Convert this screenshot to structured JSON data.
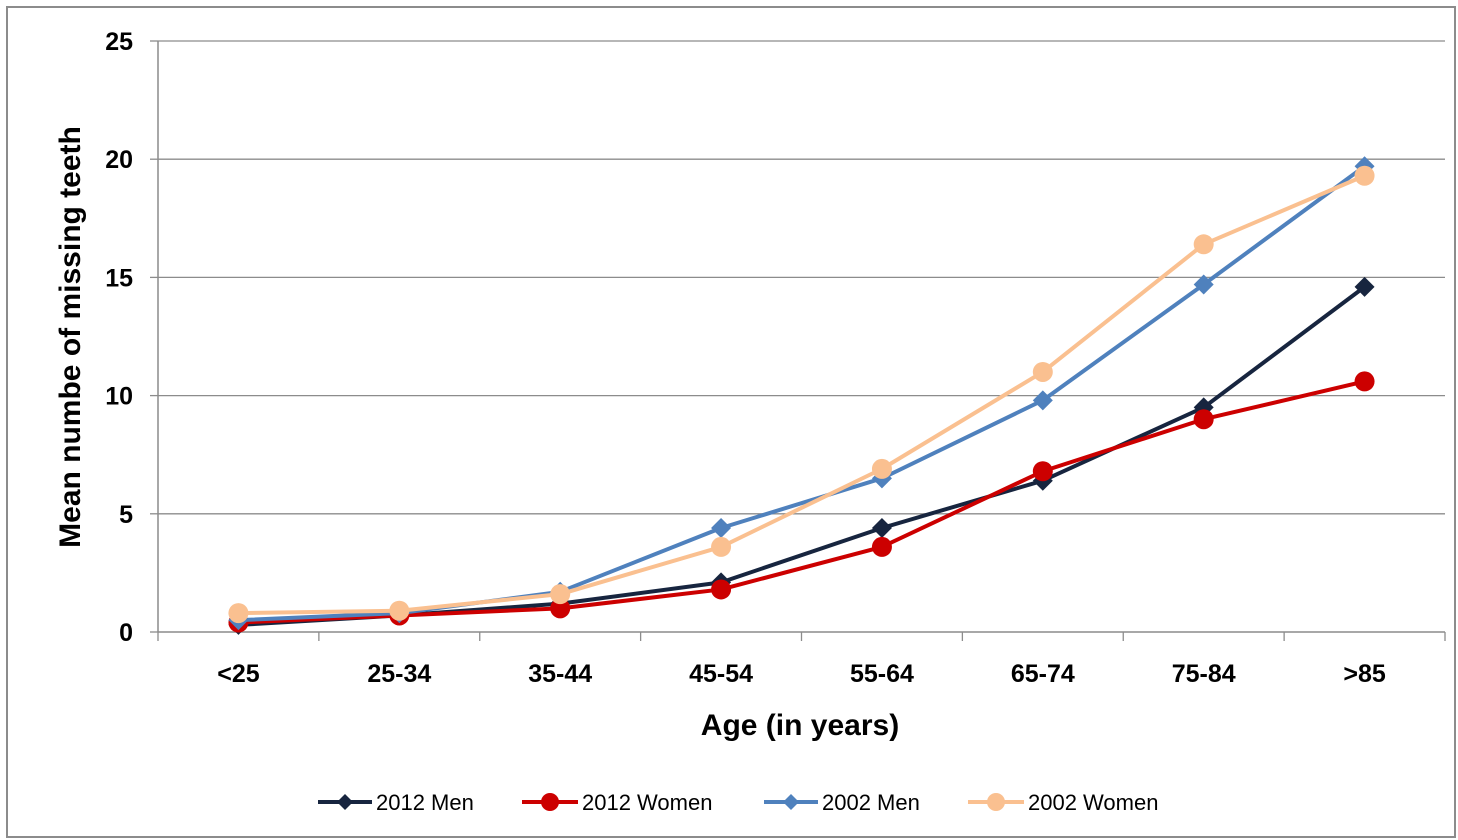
{
  "chart_data": {
    "type": "line",
    "title": "",
    "xlabel": "Age (in years)",
    "ylabel": "Mean numbe of missing teeth",
    "ylim": [
      0,
      25
    ],
    "yticks": [
      "0",
      "5",
      "10",
      "15",
      "20",
      "25"
    ],
    "categories": [
      "<25",
      "25-34",
      "35-44",
      "45-54",
      "55-64",
      "65-74",
      "75-84",
      ">85"
    ],
    "grid": "horizontal",
    "legend_position": "bottom",
    "series": [
      {
        "name": "2012 Men",
        "color": "#17253f",
        "marker": "diamond",
        "values": [
          0.3,
          0.7,
          1.2,
          2.1,
          4.4,
          6.4,
          9.5,
          14.6
        ]
      },
      {
        "name": "2012 Women",
        "color": "#cc0000",
        "marker": "circle",
        "values": [
          0.4,
          0.7,
          1.0,
          1.8,
          3.6,
          6.8,
          9.0,
          10.6
        ]
      },
      {
        "name": "2002 Men",
        "color": "#4f81bd",
        "marker": "diamond",
        "values": [
          0.5,
          0.8,
          1.7,
          4.4,
          6.5,
          9.8,
          14.7,
          19.7
        ]
      },
      {
        "name": "2002 Women",
        "color": "#fac090",
        "marker": "circle",
        "values": [
          0.8,
          0.9,
          1.6,
          3.6,
          6.9,
          11.0,
          16.4,
          19.3
        ]
      }
    ]
  }
}
